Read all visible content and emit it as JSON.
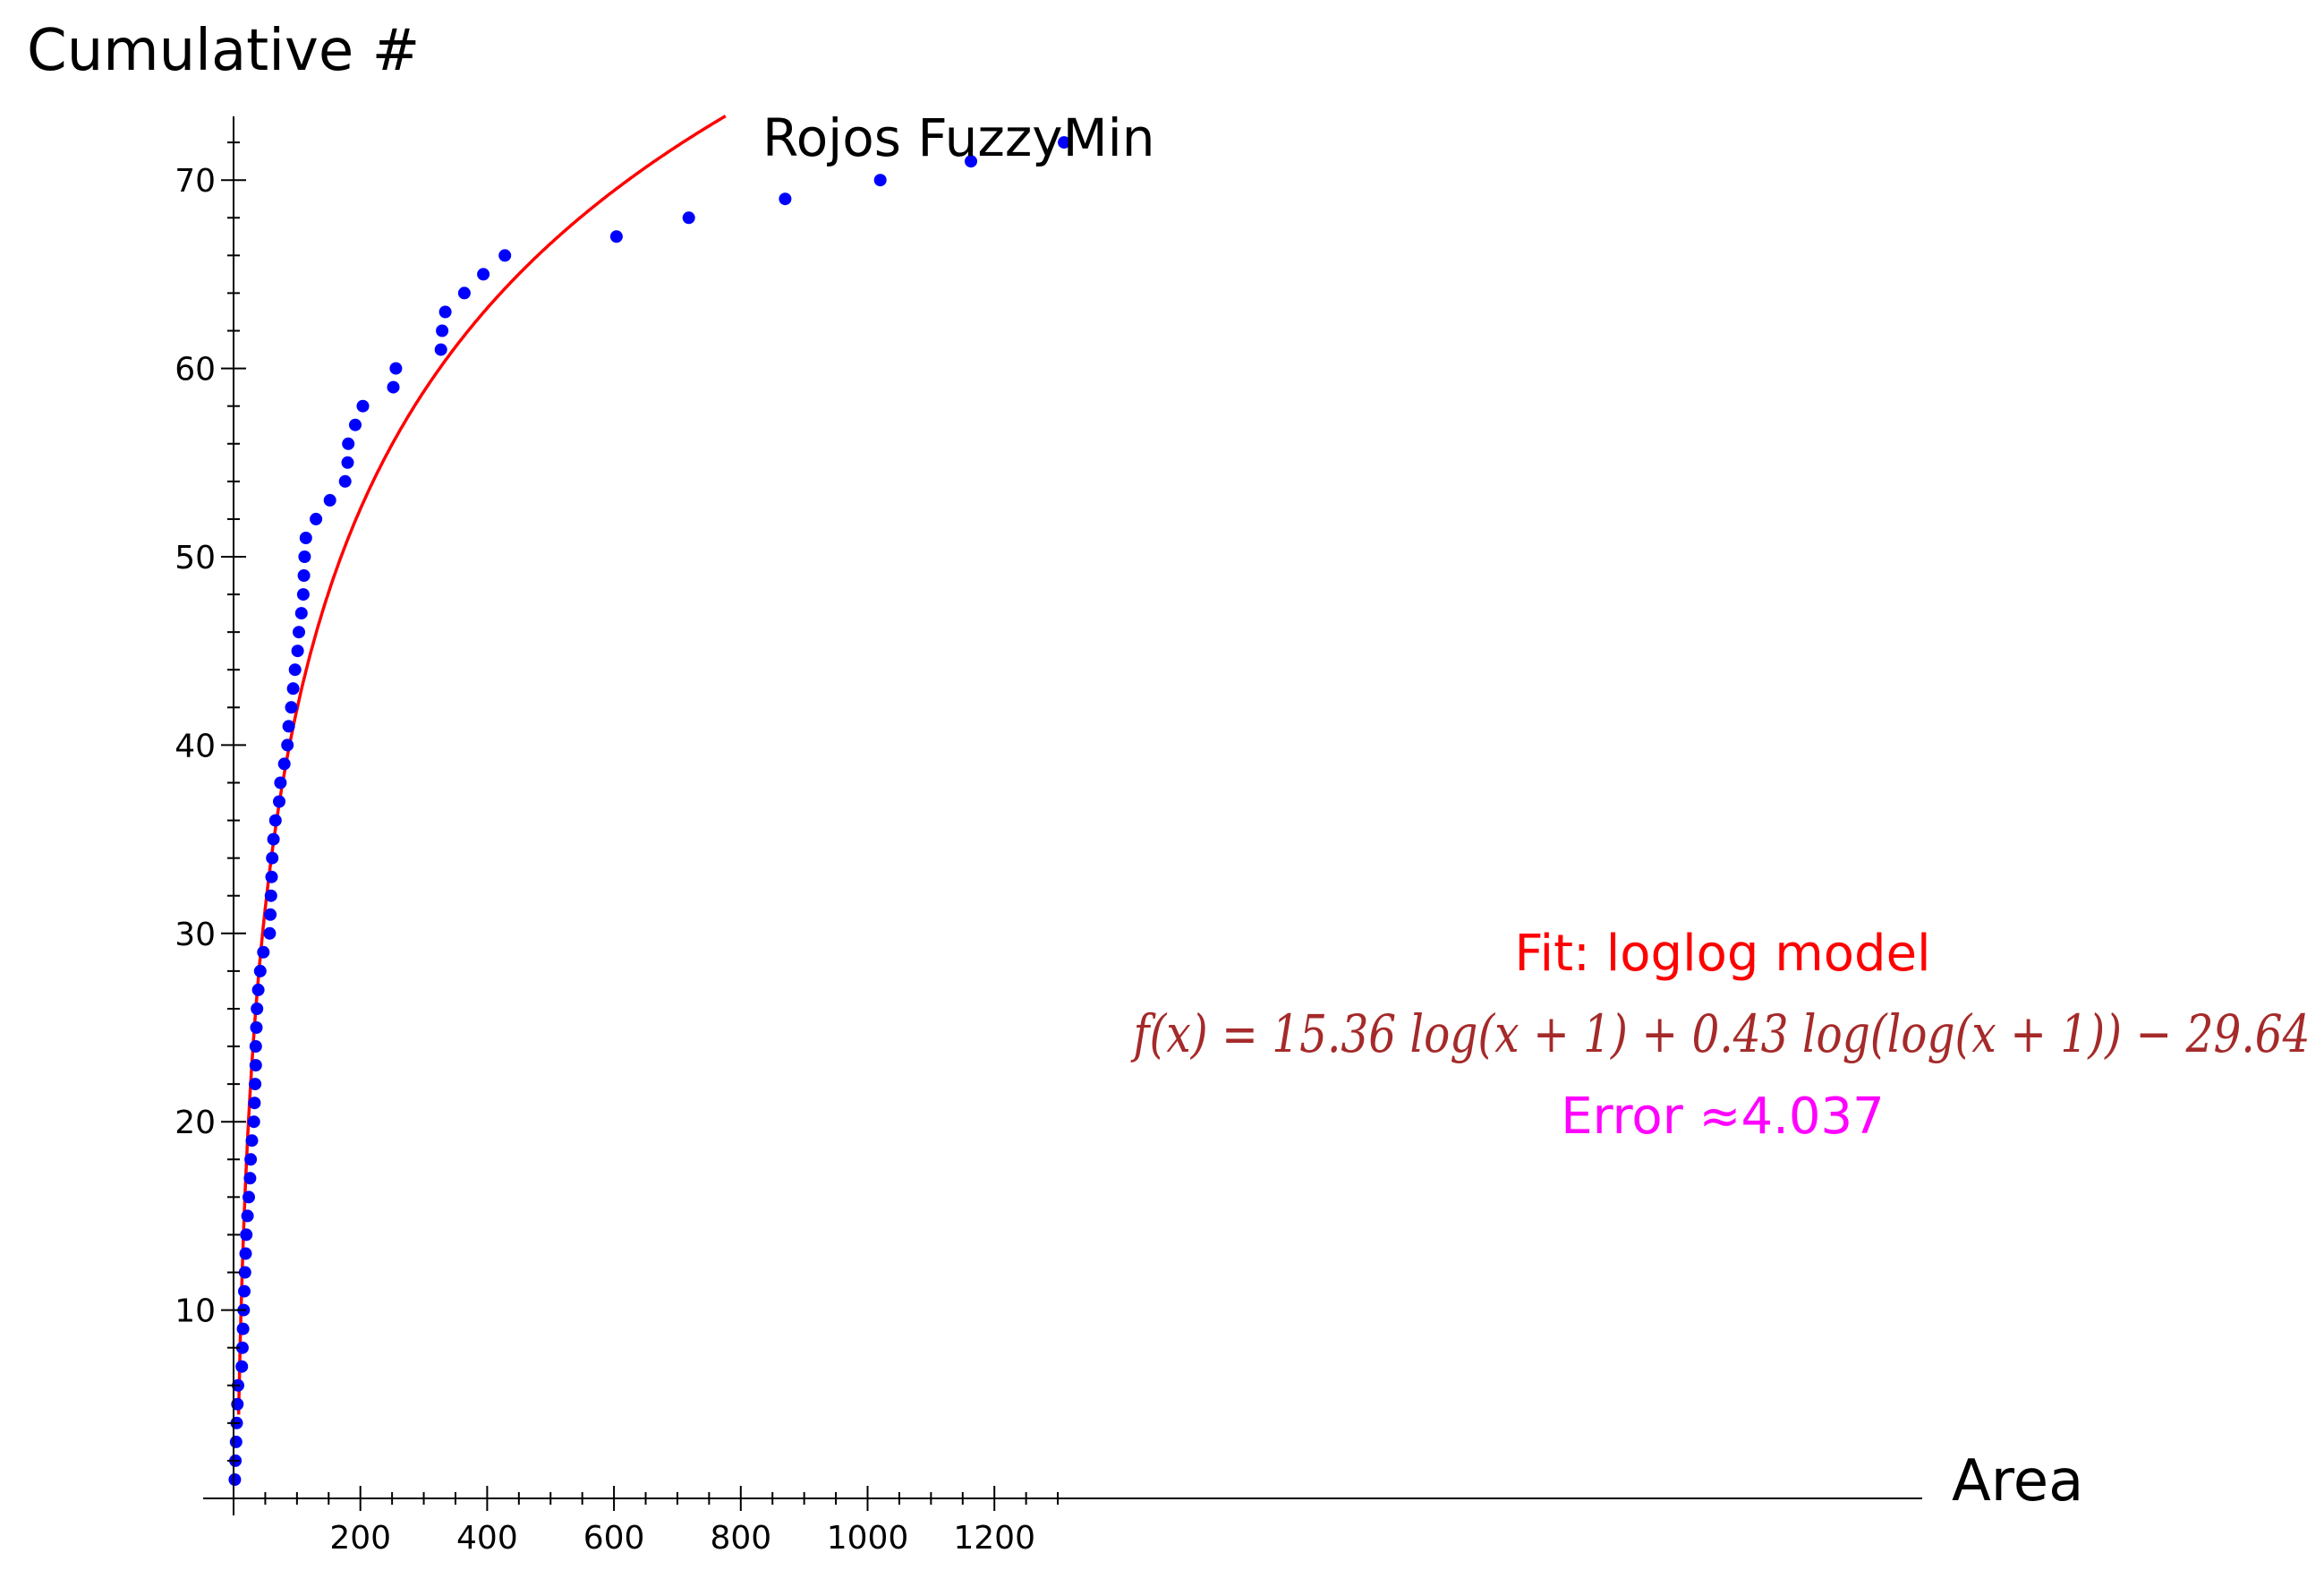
{
  "chart_data": {
    "type": "scatter",
    "title": "Rojos FuzzyMin",
    "xlabel": "Area",
    "ylabel": "Cumulative #",
    "xlim": [
      0,
      1340
    ],
    "ylim": [
      0,
      73
    ],
    "x_ticks": [
      200,
      400,
      600,
      800,
      1000,
      1200
    ],
    "x_tick_labels": [
      "200",
      "400",
      "600",
      "800",
      "1000",
      "1200"
    ],
    "y_ticks": [
      10,
      20,
      30,
      40,
      50,
      60,
      70
    ],
    "y_tick_labels": [
      "10",
      "20",
      "30",
      "40",
      "50",
      "60",
      "70"
    ],
    "grid": false,
    "series": [
      {
        "color": "#0000ff",
        "points": [
          [
            2,
            1
          ],
          [
            3,
            2
          ],
          [
            4,
            3
          ],
          [
            5,
            4
          ],
          [
            6,
            5
          ],
          [
            7,
            6
          ],
          [
            13,
            7
          ],
          [
            14,
            8
          ],
          [
            15,
            9
          ],
          [
            16,
            10
          ],
          [
            17,
            11
          ],
          [
            18,
            12
          ],
          [
            19,
            13
          ],
          [
            20,
            14
          ],
          [
            22,
            15
          ],
          [
            24,
            16
          ],
          [
            26,
            17
          ],
          [
            27,
            18
          ],
          [
            29,
            19
          ],
          [
            32,
            20
          ],
          [
            33,
            21
          ],
          [
            34,
            22
          ],
          [
            35,
            23
          ],
          [
            35,
            24
          ],
          [
            36,
            25
          ],
          [
            37,
            26
          ],
          [
            39,
            27
          ],
          [
            42,
            28
          ],
          [
            47,
            29
          ],
          [
            57,
            30
          ],
          [
            58,
            31
          ],
          [
            59,
            32
          ],
          [
            60,
            33
          ],
          [
            61,
            34
          ],
          [
            63,
            35
          ],
          [
            66,
            36
          ],
          [
            72,
            37
          ],
          [
            74,
            38
          ],
          [
            80,
            39
          ],
          [
            85,
            40
          ],
          [
            87,
            41
          ],
          [
            91,
            42
          ],
          [
            94,
            43
          ],
          [
            97,
            44
          ],
          [
            101,
            45
          ],
          [
            103,
            46
          ],
          [
            107,
            47
          ],
          [
            110,
            48
          ],
          [
            111,
            49
          ],
          [
            112,
            50
          ],
          [
            114,
            51
          ],
          [
            130,
            52
          ],
          [
            152,
            53
          ],
          [
            176,
            54
          ],
          [
            180,
            55
          ],
          [
            181,
            56
          ],
          [
            192,
            57
          ],
          [
            204,
            58
          ],
          [
            252,
            59
          ],
          [
            256,
            60
          ],
          [
            327,
            61
          ],
          [
            329,
            62
          ],
          [
            334,
            63
          ],
          [
            364,
            64
          ],
          [
            394,
            65
          ],
          [
            428,
            66
          ],
          [
            604,
            67
          ],
          [
            718,
            68
          ],
          [
            870,
            69
          ],
          [
            1020,
            70
          ],
          [
            1163,
            71
          ],
          [
            1310,
            72
          ]
        ]
      }
    ],
    "fit": {
      "model": "loglog",
      "color": "#ff0000",
      "a": 15.36,
      "b": 0.43,
      "c": -29.64
    },
    "annotations": {
      "fit_title": "Fit: loglog model",
      "fit_title_color": "#ff0000",
      "formula": "f(x) = 15.36 log(x + 1) + 0.43 log(log(x + 1)) − 29.64",
      "formula_color": "#a52a2a",
      "error_text": "Error ≈4.037",
      "error_color": "#ff00ff"
    }
  }
}
